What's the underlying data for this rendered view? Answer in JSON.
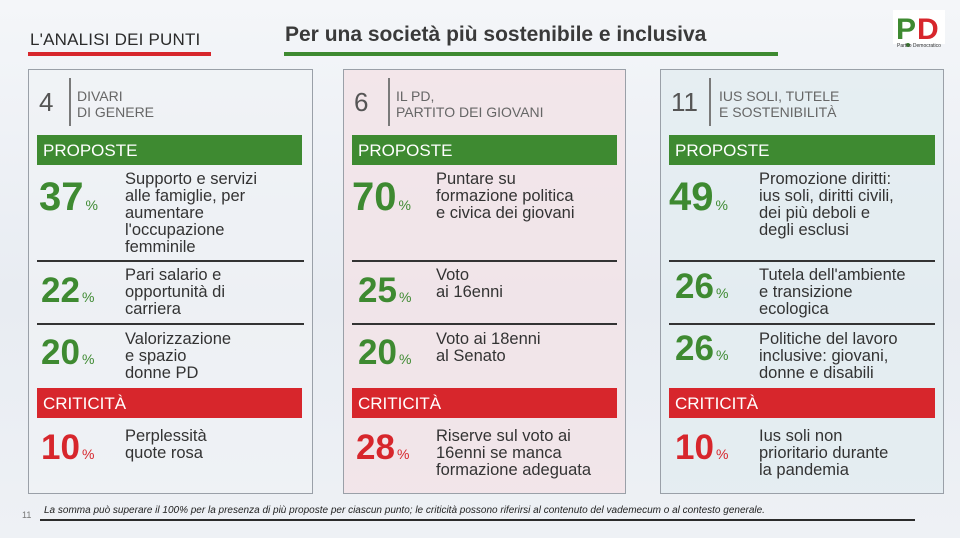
{
  "header": {
    "section_label": "L'ANALISI DEI PUNTI",
    "title": "Per una società più sostenibile e inclusiva",
    "logo_text": "PD",
    "logo_sub": "Partito Democratico"
  },
  "colors": {
    "green": "#3e8a31",
    "red": "#d7262c"
  },
  "panels": [
    {
      "number": "4",
      "topic": "DIVARI\nDI GENERE",
      "proposals_label": "PROPOSTE",
      "proposals": [
        {
          "pct": "37",
          "sign": "%",
          "text": "Supporto e servizi\nalle famiglie, per\naumentare\nl'occupazione\nfemminile"
        },
        {
          "pct": "22",
          "sign": "%",
          "text": "Pari salario e\nopportunità di\ncarriera"
        },
        {
          "pct": "20",
          "sign": "%",
          "text": "Valorizzazione\ne spazio\ndonne PD"
        }
      ],
      "critical_label": "CRITICITÀ",
      "critical": {
        "pct": "10",
        "sign": "%",
        "text": "Perplessità\nquote rosa"
      }
    },
    {
      "number": "6",
      "topic": "IL PD,\nPARTITO DEI GIOVANI",
      "proposals_label": "PROPOSTE",
      "proposals": [
        {
          "pct": "70",
          "sign": "%",
          "text": "Puntare su\nformazione politica\ne civica dei giovani"
        },
        {
          "pct": "25",
          "sign": "%",
          "text": "Voto\nai 16enni"
        },
        {
          "pct": "20",
          "sign": "%",
          "text": "Voto ai 18enni\nal Senato"
        }
      ],
      "critical_label": "CRITICITÀ",
      "critical": {
        "pct": "28",
        "sign": "%",
        "text": "Riserve sul voto ai\n16enni se manca\nformazione adeguata"
      }
    },
    {
      "number": "11",
      "topic": "IUS SOLI, TUTELE\nE SOSTENIBILITÀ",
      "proposals_label": "PROPOSTE",
      "proposals": [
        {
          "pct": "49",
          "sign": "%",
          "text": "Promozione diritti:\nius soli, diritti civili,\ndei più deboli e\ndegli esclusi"
        },
        {
          "pct": "26",
          "sign": "%",
          "text": "Tutela dell'ambiente\ne transizione\necologica"
        },
        {
          "pct": "26",
          "sign": "%",
          "text": "Politiche del lavoro\ninclusive: giovani,\ndonne e disabili"
        }
      ],
      "critical_label": "CRITICITÀ",
      "critical": {
        "pct": "10",
        "sign": "%",
        "text": "Ius soli non\nprioritario durante\nla pandemia"
      }
    }
  ],
  "footer": {
    "page_number": "11",
    "note": "La somma può superare il 100% per la presenza di più proposte per ciascun punto; le criticità possono riferirsi al contenuto del vademecum o al contesto generale."
  }
}
